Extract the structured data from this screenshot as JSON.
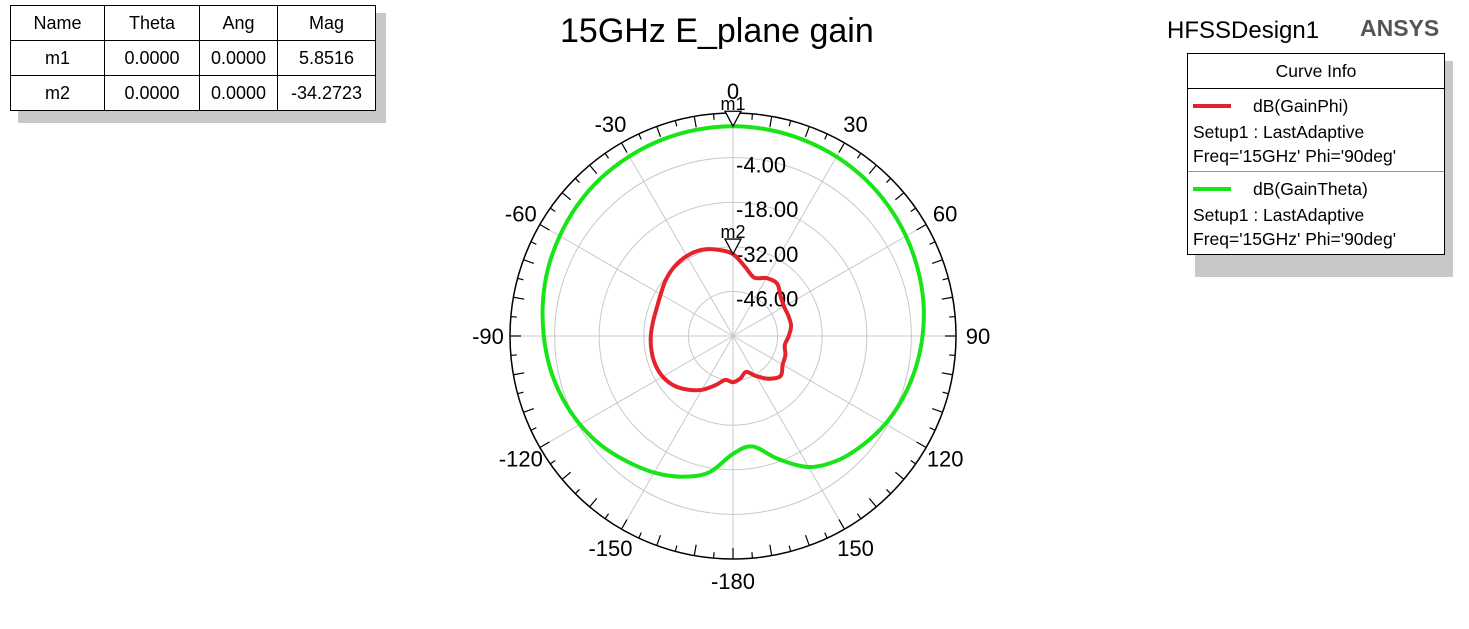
{
  "marker_table": {
    "headers": [
      "Name",
      "Theta",
      "Ang",
      "Mag"
    ],
    "rows": [
      [
        "m1",
        "0.0000",
        "0.0000",
        "5.8516"
      ],
      [
        "m2",
        "0.0000",
        "0.0000",
        "-34.2723"
      ]
    ]
  },
  "design_name": "HFSSDesign1",
  "brand": "ANSYS",
  "legend": {
    "title": "Curve Info",
    "entries": [
      {
        "name": "dB(GainPhi)",
        "setup": "Setup1 : LastAdaptive",
        "freq": "Freq='15GHz' Phi='90deg'"
      },
      {
        "name": "dB(GainTheta)",
        "setup": "Setup1 : LastAdaptive",
        "freq": "Freq='15GHz' Phi='90deg'"
      }
    ]
  },
  "chart_data": {
    "type": "polar",
    "title": "15GHz E_plane gain",
    "radial_ticks": [
      "-4.00",
      "-18.00",
      "-32.00",
      "-46.00"
    ],
    "radial_range": [
      -60,
      10
    ],
    "angle_labels": [
      "0",
      "30",
      "60",
      "90",
      "120",
      "150",
      "-180",
      "-150",
      "-120",
      "-90",
      "-60",
      "-30"
    ],
    "grid": true,
    "colors": {
      "GainPhi": "#e3242b",
      "GainTheta": "#18e418"
    },
    "series": [
      {
        "name": "dB(GainPhi)",
        "theta": [
          0,
          10,
          20,
          30,
          40,
          50,
          60,
          70,
          80,
          90,
          100,
          110,
          120,
          130,
          140,
          150,
          160,
          170,
          180,
          190,
          200,
          210,
          220,
          230,
          240,
          250,
          260,
          270,
          280,
          290,
          300,
          310,
          320,
          330,
          340,
          350
        ],
        "gain_db": [
          -34.3,
          -38.0,
          -40.5,
          -39.0,
          -38.5,
          -40.5,
          -41.5,
          -41.5,
          -41.5,
          -42.5,
          -43.5,
          -42.5,
          -42.0,
          -40.5,
          -42.5,
          -45.5,
          -48.0,
          -46.5,
          -45.5,
          -46.0,
          -43.5,
          -40.5,
          -38.0,
          -35.8,
          -34.5,
          -34.0,
          -34.0,
          -34.2,
          -34.5,
          -34.5,
          -33.8,
          -32.5,
          -31.5,
          -31.0,
          -31.2,
          -32.5
        ]
      },
      {
        "name": "dB(GainTheta)",
        "theta": [
          0,
          10,
          20,
          30,
          40,
          50,
          60,
          70,
          80,
          90,
          100,
          110,
          120,
          130,
          140,
          150,
          160,
          170,
          180,
          190,
          200,
          210,
          220,
          230,
          240,
          250,
          260,
          270,
          280,
          290,
          300,
          310,
          320,
          330,
          340,
          350
        ],
        "gain_db": [
          5.85,
          5.7,
          5.4,
          5.0,
          4.4,
          3.6,
          2.7,
          1.7,
          0.7,
          -0.5,
          -1.8,
          -3.2,
          -4.8,
          -6.8,
          -9.0,
          -12.5,
          -19.0,
          -24.8,
          -23.0,
          -16.5,
          -13.0,
          -10.5,
          -8.5,
          -6.3,
          -4.5,
          -3.0,
          -1.7,
          -0.6,
          0.6,
          1.8,
          2.8,
          3.8,
          4.6,
          5.1,
          5.5,
          5.75
        ]
      }
    ],
    "markers": [
      {
        "name": "m1",
        "theta": 0,
        "ang": 0,
        "mag": 5.8516
      },
      {
        "name": "m2",
        "theta": 0,
        "ang": 0,
        "mag": -34.2723
      }
    ]
  }
}
